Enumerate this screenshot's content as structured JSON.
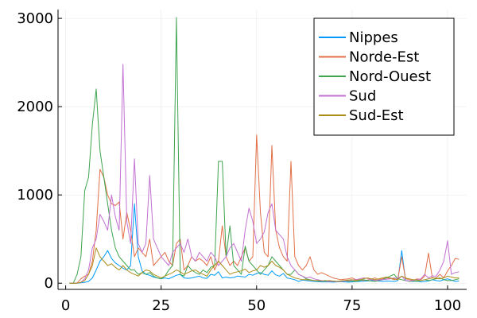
{
  "chart_data": {
    "type": "line",
    "title": "",
    "xlabel": "",
    "ylabel": "",
    "xlim": [
      -2,
      105
    ],
    "ylim": [
      -70,
      3100
    ],
    "xticks": [
      0,
      25,
      50,
      75,
      100
    ],
    "yticks": [
      0,
      1000,
      2000,
      3000
    ],
    "x_tick_labels": [
      "0",
      "25",
      "50",
      "75",
      "100"
    ],
    "y_tick_labels": [
      "0",
      "1000",
      "2000",
      "3000"
    ],
    "grid": true,
    "legend_position": "top-right",
    "x": [
      1,
      2,
      3,
      4,
      5,
      6,
      7,
      8,
      9,
      10,
      11,
      12,
      13,
      14,
      15,
      16,
      17,
      18,
      19,
      20,
      21,
      22,
      23,
      24,
      25,
      26,
      27,
      28,
      29,
      30,
      31,
      32,
      33,
      34,
      35,
      36,
      37,
      38,
      39,
      40,
      41,
      42,
      43,
      44,
      45,
      46,
      47,
      48,
      49,
      50,
      51,
      52,
      53,
      54,
      55,
      56,
      57,
      58,
      59,
      60,
      61,
      62,
      63,
      64,
      65,
      66,
      67,
      68,
      69,
      70,
      71,
      72,
      73,
      74,
      75,
      76,
      77,
      78,
      79,
      80,
      81,
      82,
      83,
      84,
      85,
      86,
      87,
      88,
      89,
      90,
      91,
      92,
      93,
      94,
      95,
      96,
      97,
      98,
      99,
      100,
      101,
      102,
      103
    ],
    "series": [
      {
        "name": "Nippes",
        "color": "#009AFA",
        "values": [
          0,
          0,
          0,
          5,
          10,
          20,
          60,
          150,
          250,
          300,
          370,
          280,
          230,
          200,
          170,
          150,
          200,
          900,
          300,
          140,
          100,
          90,
          70,
          60,
          50,
          60,
          50,
          70,
          90,
          100,
          60,
          55,
          60,
          70,
          80,
          60,
          55,
          100,
          90,
          130,
          60,
          70,
          60,
          65,
          80,
          75,
          70,
          100,
          90,
          110,
          120,
          100,
          90,
          140,
          95,
          80,
          110,
          60,
          50,
          40,
          20,
          35,
          30,
          25,
          20,
          18,
          15,
          15,
          15,
          12,
          15,
          18,
          15,
          12,
          15,
          18,
          20,
          22,
          25,
          30,
          30,
          25,
          20,
          25,
          22,
          20,
          30,
          370,
          30,
          25,
          20,
          25,
          15,
          20,
          25,
          40,
          30,
          25,
          40,
          50,
          35,
          20,
          25
        ]
      },
      {
        "name": "Norde-Est",
        "color": "#E26F46",
        "values": [
          0,
          0,
          0,
          50,
          80,
          100,
          250,
          600,
          1290,
          1200,
          1000,
          900,
          880,
          920,
          500,
          800,
          600,
          300,
          400,
          350,
          300,
          500,
          200,
          250,
          300,
          350,
          250,
          200,
          450,
          500,
          150,
          200,
          300,
          250,
          280,
          250,
          200,
          300,
          150,
          250,
          650,
          300,
          200,
          250,
          200,
          300,
          400,
          250,
          300,
          1680,
          800,
          350,
          300,
          1560,
          600,
          400,
          300,
          250,
          1380,
          300,
          200,
          150,
          200,
          300,
          150,
          100,
          120,
          100,
          80,
          60,
          50,
          40,
          45,
          50,
          60,
          40,
          35,
          30,
          35,
          45,
          60,
          40,
          50,
          60,
          55,
          40,
          50,
          300,
          50,
          40,
          30,
          50,
          40,
          80,
          340,
          60,
          60,
          100,
          60,
          140,
          200,
          280,
          270
        ]
      },
      {
        "name": "Nord-Ouest",
        "color": "#3EA44E",
        "values": [
          0,
          0,
          100,
          300,
          1050,
          1200,
          1800,
          2200,
          1500,
          1200,
          900,
          600,
          400,
          300,
          250,
          200,
          150,
          150,
          100,
          120,
          100,
          120,
          80,
          60,
          50,
          80,
          150,
          200,
          3010,
          100,
          80,
          200,
          150,
          120,
          100,
          150,
          120,
          180,
          200,
          1380,
          1380,
          300,
          650,
          200,
          150,
          100,
          420,
          250,
          200,
          150,
          100,
          150,
          200,
          300,
          250,
          200,
          150,
          100,
          100,
          150,
          100,
          80,
          50,
          40,
          30,
          25,
          25,
          30,
          20,
          25,
          20,
          25,
          30,
          20,
          25,
          20,
          30,
          40,
          30,
          25,
          20,
          30,
          40,
          60,
          80,
          100,
          50,
          40,
          30,
          20,
          25,
          20,
          30,
          40,
          30,
          40,
          50,
          60,
          40,
          30,
          30,
          40,
          50
        ]
      },
      {
        "name": "Sud",
        "color": "#C271D2",
        "values": [
          0,
          0,
          0,
          10,
          50,
          150,
          400,
          500,
          780,
          700,
          600,
          1000,
          750,
          600,
          2480,
          700,
          450,
          1410,
          450,
          350,
          450,
          1220,
          500,
          400,
          300,
          250,
          200,
          350,
          400,
          450,
          350,
          500,
          300,
          250,
          350,
          300,
          250,
          350,
          300,
          200,
          250,
          300,
          400,
          450,
          350,
          250,
          600,
          850,
          700,
          450,
          500,
          580,
          800,
          900,
          600,
          550,
          500,
          300,
          200,
          150,
          100,
          80,
          60,
          70,
          50,
          40,
          30,
          25,
          20,
          20,
          18,
          20,
          25,
          30,
          35,
          40,
          50,
          60,
          55,
          40,
          30,
          35,
          40,
          45,
          50,
          60,
          55,
          80,
          30,
          25,
          30,
          40,
          50,
          100,
          60,
          80,
          80,
          150,
          250,
          480,
          100,
          120,
          130
        ]
      },
      {
        "name": "Sud-Est",
        "color": "#AC8D18",
        "values": [
          0,
          0,
          0,
          10,
          30,
          100,
          200,
          400,
          300,
          250,
          200,
          220,
          180,
          150,
          200,
          150,
          120,
          100,
          80,
          120,
          150,
          140,
          100,
          80,
          60,
          80,
          100,
          120,
          150,
          130,
          100,
          120,
          140,
          150,
          120,
          100,
          80,
          150,
          200,
          250,
          200,
          150,
          100,
          120,
          130,
          140,
          160,
          120,
          140,
          150,
          200,
          180,
          200,
          250,
          200,
          180,
          150,
          100,
          80,
          60,
          50,
          40,
          40,
          35,
          30,
          30,
          25,
          25,
          30,
          25,
          20,
          25,
          30,
          35,
          40,
          30,
          40,
          50,
          60,
          50,
          40,
          50,
          60,
          70,
          60,
          50,
          40,
          80,
          60,
          50,
          40,
          35,
          30,
          40,
          50,
          60,
          55,
          50,
          60,
          80,
          70,
          60,
          60
        ]
      }
    ]
  }
}
